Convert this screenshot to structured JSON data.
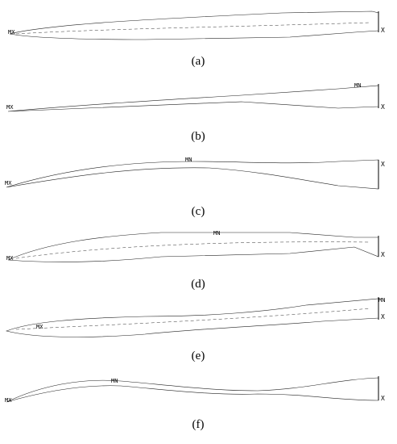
{
  "panels": [
    {
      "label": "(a)",
      "annotations": [
        "MX"
      ],
      "axis": "X"
    },
    {
      "label": "(b)",
      "annotations": [
        "MX",
        "MN"
      ],
      "axis": "X"
    },
    {
      "label": "(c)",
      "annotations": [
        "MX",
        "MN"
      ],
      "axis": "X"
    },
    {
      "label": "(d)",
      "annotations": [
        "MX",
        "MN"
      ],
      "axis": "X"
    },
    {
      "label": "(e)",
      "annotations": [
        "MX",
        "MN"
      ],
      "axis": "X"
    },
    {
      "label": "(f)",
      "annotations": [
        "MX",
        "MN"
      ],
      "axis": "X"
    }
  ]
}
